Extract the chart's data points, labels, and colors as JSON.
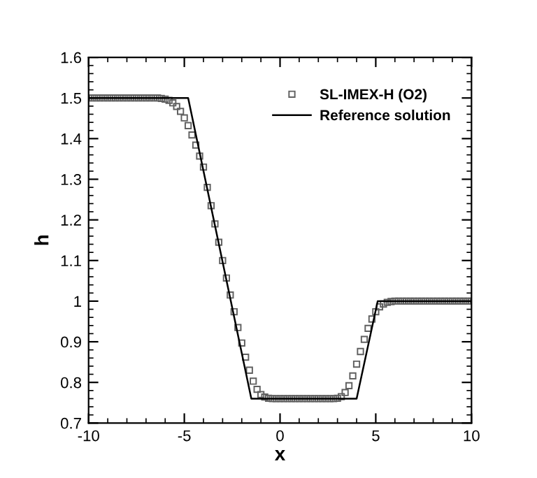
{
  "chart_data": {
    "type": "line",
    "xlabel": "x",
    "ylabel": "h",
    "xlim": [
      -10,
      10
    ],
    "xticks": [
      -10,
      -5,
      0,
      5,
      10
    ],
    "ylim": [
      0.7,
      1.6
    ],
    "yticks": [
      0.7,
      0.8,
      0.9,
      1,
      1.1,
      1.2,
      1.3,
      1.4,
      1.5,
      1.6
    ],
    "grid": false,
    "legend": "top right",
    "series": [
      {
        "name": "SL-IMEX-H (O2)",
        "type": "scatter",
        "marker": "square",
        "color": "#606060",
        "x": [
          -10,
          -9.8,
          -9.6,
          -9.4,
          -9.2,
          -9.0,
          -8.8,
          -8.6,
          -8.4,
          -8.2,
          -8.0,
          -7.8,
          -7.6,
          -7.4,
          -7.2,
          -7.0,
          -6.8,
          -6.6,
          -6.4,
          -6.2,
          -6.0,
          -5.8,
          -5.6,
          -5.4,
          -5.2,
          -5.0,
          -4.8,
          -4.6,
          -4.4,
          -4.2,
          -4.0,
          -3.8,
          -3.6,
          -3.4,
          -3.2,
          -3.0,
          -2.8,
          -2.6,
          -2.4,
          -2.2,
          -2.0,
          -1.8,
          -1.6,
          -1.4,
          -1.2,
          -1.0,
          -0.8,
          -0.6,
          -0.4,
          -0.2,
          0,
          0.2,
          0.4,
          0.6,
          0.8,
          1.0,
          1.2,
          1.4,
          1.6,
          1.8,
          2.0,
          2.2,
          2.4,
          2.6,
          2.8,
          3.0,
          3.2,
          3.4,
          3.6,
          3.8,
          4.0,
          4.2,
          4.4,
          4.6,
          4.8,
          5.0,
          5.2,
          5.4,
          5.6,
          5.8,
          6.0,
          6.2,
          6.4,
          6.6,
          6.8,
          7.0,
          7.2,
          7.4,
          7.6,
          7.8,
          8.0,
          8.2,
          8.4,
          8.6,
          8.8,
          9.0,
          9.2,
          9.4,
          9.6,
          9.8,
          10
        ],
        "values": [
          1.5,
          1.5,
          1.5,
          1.5,
          1.5,
          1.5,
          1.5,
          1.5,
          1.5,
          1.5,
          1.5,
          1.5,
          1.5,
          1.5,
          1.5,
          1.5,
          1.5,
          1.5,
          1.5,
          1.499,
          1.497,
          1.494,
          1.488,
          1.479,
          1.467,
          1.451,
          1.432,
          1.409,
          1.384,
          1.357,
          1.33,
          1.28,
          1.235,
          1.19,
          1.145,
          1.1,
          1.057,
          1.015,
          0.974,
          0.935,
          0.897,
          0.862,
          0.83,
          0.803,
          0.783,
          0.77,
          0.764,
          0.761,
          0.76,
          0.76,
          0.76,
          0.76,
          0.76,
          0.76,
          0.76,
          0.76,
          0.76,
          0.76,
          0.76,
          0.76,
          0.76,
          0.76,
          0.76,
          0.76,
          0.76,
          0.761,
          0.765,
          0.775,
          0.792,
          0.816,
          0.845,
          0.876,
          0.906,
          0.933,
          0.956,
          0.974,
          0.986,
          0.993,
          0.997,
          0.999,
          1.0,
          1.0,
          1.0,
          1.0,
          1.0,
          1.0,
          1.0,
          1.0,
          1.0,
          1.0,
          1.0,
          1.0,
          1.0,
          1.0,
          1.0,
          1.0,
          1.0,
          1.0,
          1.0,
          1.0,
          1.0
        ]
      },
      {
        "name": "Reference solution",
        "line_style": "solid",
        "color": "#000000",
        "x": [
          -10,
          -4.8,
          -1.5,
          4.0,
          5.1,
          10
        ],
        "values": [
          1.5,
          1.5,
          0.76,
          0.76,
          1.0,
          1.0
        ]
      }
    ]
  }
}
